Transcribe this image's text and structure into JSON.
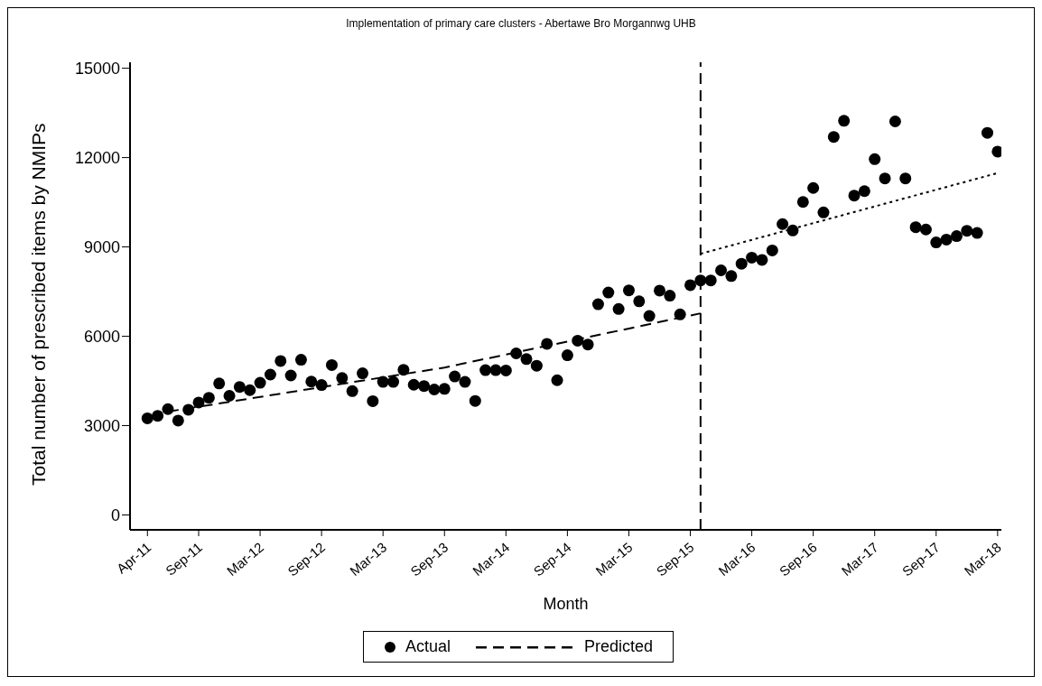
{
  "chart_data": {
    "type": "scatter",
    "title": "Implementation of primary care clusters - Abertawe Bro Morgannwg UHB",
    "xlabel": "Month",
    "ylabel": "Total number of prescribed items by NMIPs",
    "x": [
      "2011-04",
      "2011-05",
      "2011-06",
      "2011-07",
      "2011-08",
      "2011-09",
      "2011-10",
      "2011-11",
      "2011-12",
      "2012-01",
      "2012-02",
      "2012-03",
      "2012-04",
      "2012-05",
      "2012-06",
      "2012-07",
      "2012-08",
      "2012-09",
      "2012-10",
      "2012-11",
      "2012-12",
      "2013-01",
      "2013-02",
      "2013-03",
      "2013-04",
      "2013-05",
      "2013-06",
      "2013-07",
      "2013-08",
      "2013-09",
      "2013-10",
      "2013-11",
      "2013-12",
      "2014-01",
      "2014-02",
      "2014-03",
      "2014-04",
      "2014-05",
      "2014-06",
      "2014-07",
      "2014-08",
      "2014-09",
      "2014-10",
      "2014-11",
      "2014-12",
      "2015-01",
      "2015-02",
      "2015-03",
      "2015-04",
      "2015-05",
      "2015-06",
      "2015-07",
      "2015-08",
      "2015-09",
      "2015-10",
      "2015-11",
      "2015-12",
      "2016-01",
      "2016-02",
      "2016-03",
      "2016-04",
      "2016-05",
      "2016-06",
      "2016-07",
      "2016-08",
      "2016-09",
      "2016-10",
      "2016-11",
      "2016-12",
      "2017-01",
      "2017-02",
      "2017-03",
      "2017-04",
      "2017-05",
      "2017-06",
      "2017-07",
      "2017-08",
      "2017-09",
      "2017-10",
      "2017-11",
      "2017-12",
      "2018-01",
      "2018-02",
      "2018-03"
    ],
    "series": [
      {
        "name": "Actual",
        "type": "scatter",
        "color": "#000000",
        "marker": "circle",
        "values": [
          3245,
          3330,
          3553,
          3170,
          3533,
          3776,
          3935,
          4414,
          4000,
          4300,
          4190,
          4437,
          4714,
          5170,
          4682,
          5212,
          4478,
          4363,
          5033,
          4596,
          4159,
          4756,
          3820,
          4469,
          4469,
          4874,
          4373,
          4330,
          4213,
          4234,
          4650,
          4469,
          3830,
          4861,
          4861,
          4851,
          5426,
          5234,
          5011,
          5745,
          4523,
          5362,
          5851,
          5723,
          7076,
          7469,
          6916,
          7542,
          7172,
          6681,
          7533,
          7364,
          6735,
          7715,
          7874,
          7874,
          8213,
          8021,
          8436,
          8640,
          8564,
          8883,
          9767,
          9553,
          10510,
          10980,
          10160,
          12694,
          13236,
          10724,
          10874,
          11947,
          11299,
          13214,
          11299,
          9662,
          9585,
          9151,
          9247,
          9362,
          9543,
          9470,
          12831,
          12202
        ]
      },
      {
        "name": "Predicted",
        "type": "line",
        "color": "#000000",
        "line_style": "dashed",
        "marker": "none",
        "x": [
          "2011-06",
          "2013-09",
          "2015-10"
        ],
        "values": [
          3470,
          4950,
          6770
        ]
      },
      {
        "type": "line",
        "color": "#000000",
        "line_style": "dotted",
        "marker": "none",
        "x": [
          "2015-10",
          "2018-03"
        ],
        "values": [
          8770,
          11480
        ]
      }
    ],
    "xlim": [
      "2011-02-10",
      "2018-03-12"
    ],
    "xticks": [
      {
        "value": "2011-04",
        "label": "Apr-11"
      },
      {
        "value": "2011-09",
        "label": "Sep-11"
      },
      {
        "value": "2012-03",
        "label": "Mar-12"
      },
      {
        "value": "2012-09",
        "label": "Sep-12"
      },
      {
        "value": "2013-03",
        "label": "Mar-13"
      },
      {
        "value": "2013-09",
        "label": "Sep-13"
      },
      {
        "value": "2014-03",
        "label": "Mar-14"
      },
      {
        "value": "2014-09",
        "label": "Sep-14"
      },
      {
        "value": "2015-03",
        "label": "Mar-15"
      },
      {
        "value": "2015-09",
        "label": "Sep-15"
      },
      {
        "value": "2016-03",
        "label": "Mar-16"
      },
      {
        "value": "2016-09",
        "label": "Sep-16"
      },
      {
        "value": "2017-03",
        "label": "Mar-17"
      },
      {
        "value": "2017-09",
        "label": "Sep-17"
      },
      {
        "value": "2018-03",
        "label": "Mar-18"
      }
    ],
    "ylim": [
      -500,
      15200
    ],
    "yticks": [
      0,
      3000,
      6000,
      9000,
      12000,
      15000
    ],
    "ref_lines": [
      {
        "axis": "x",
        "value": "2015-10",
        "line_style": "dashed",
        "color": "#000000"
      }
    ],
    "grid": false,
    "legend": "bottom"
  }
}
